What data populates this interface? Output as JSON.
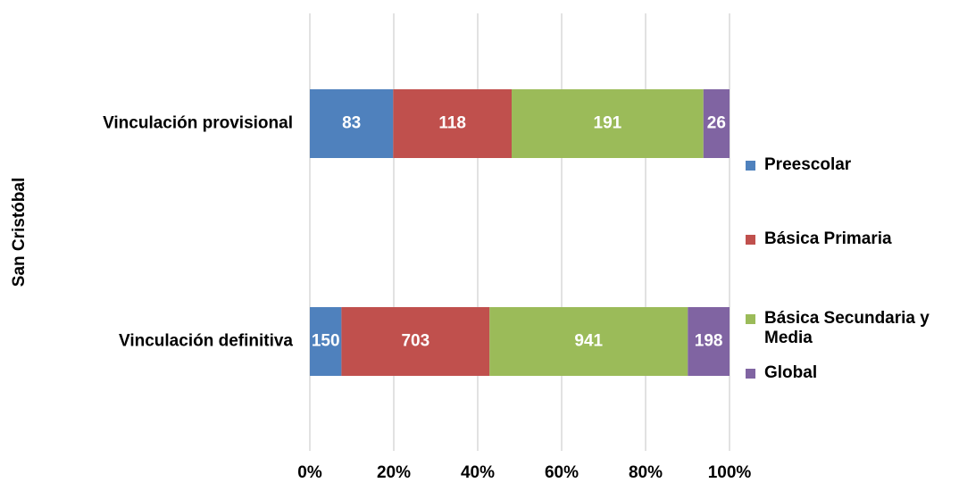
{
  "chart_data": {
    "type": "stacked-bar-100",
    "orientation": "horizontal",
    "y_label": "San Cristóbal",
    "categories": [
      "Vinculación provisional",
      "Vinculación definitiva"
    ],
    "series": [
      {
        "name": "Preescolar",
        "color": "#4f81bd",
        "values": [
          83,
          150
        ]
      },
      {
        "name": "Básica Primaria",
        "color": "#c0504d",
        "values": [
          118,
          703
        ]
      },
      {
        "name": "Básica Secundaria y Media",
        "color": "#9bbb59",
        "values": [
          191,
          941
        ]
      },
      {
        "name": "Global",
        "color": "#8064a2",
        "values": [
          26,
          198
        ]
      }
    ],
    "xlim": [
      0,
      100
    ],
    "xticks": [
      {
        "value": 0,
        "label": "0%"
      },
      {
        "value": 20,
        "label": "20%"
      },
      {
        "value": 40,
        "label": "40%"
      },
      {
        "value": 60,
        "label": "60%"
      },
      {
        "value": 80,
        "label": "80%"
      },
      {
        "value": 100,
        "label": "100%"
      }
    ],
    "grid": true,
    "legend": "right"
  }
}
